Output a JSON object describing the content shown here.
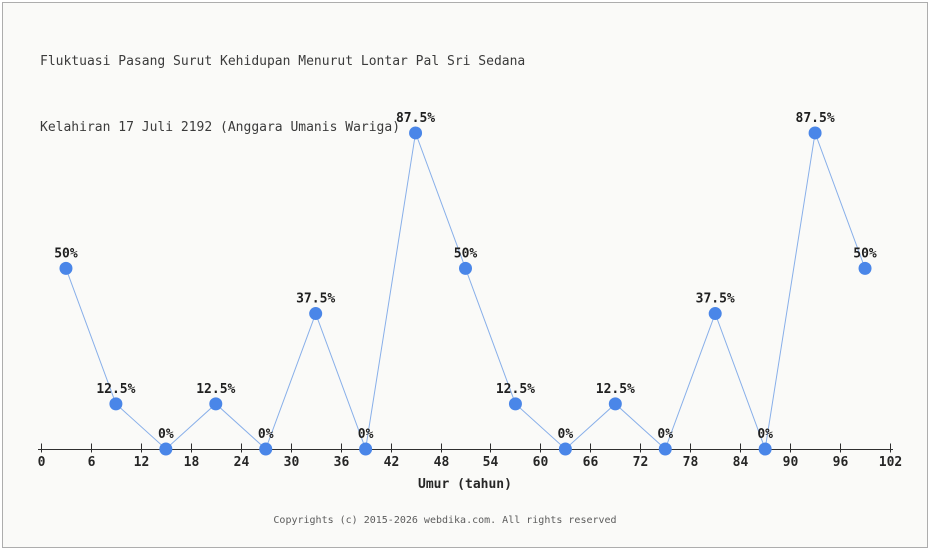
{
  "title": {
    "line1": "Fluktuasi Pasang Surut Kehidupan Menurut Lontar Pal Sri Sedana",
    "line2": "Kelahiran 17 Juli 2192 (Anggara Umanis Wariga)"
  },
  "footer": {
    "copyright": "Copyrights (c) 2015-2026 webdika.com. All rights reserved"
  },
  "chart_data": {
    "type": "line",
    "title": "Fluktuasi Pasang Surut Kehidupan Menurut Lontar Pal Sri Sedana Kelahiran 17 Juli 2192 (Anggara Umanis Wariga)",
    "x": [
      3,
      9,
      15,
      21,
      27,
      33,
      39,
      45,
      51,
      57,
      63,
      69,
      75,
      81,
      87,
      93,
      99
    ],
    "values": [
      50,
      12.5,
      0,
      12.5,
      0,
      37.5,
      0,
      87.5,
      50,
      12.5,
      0,
      12.5,
      0,
      37.5,
      0,
      87.5,
      50
    ],
    "point_labels": [
      "50%",
      "12.5%",
      "0%",
      "12.5%",
      "0%",
      "37.5%",
      "0%",
      "87.5%",
      "50%",
      "12.5%",
      "0%",
      "12.5%",
      "0%",
      "37.5%",
      "0%",
      "87.5%",
      "50%"
    ],
    "xlabel": "Umur (tahun)",
    "ylabel": "",
    "x_ticks": [
      0,
      6,
      12,
      18,
      24,
      30,
      36,
      42,
      48,
      54,
      60,
      66,
      72,
      78,
      84,
      90,
      96,
      102
    ],
    "xlim": [
      0,
      102
    ],
    "ylim": [
      0,
      100
    ],
    "grid": false,
    "legend": false,
    "colors": {
      "marker": "#4a86e8",
      "line": "#88afe9",
      "axis": "#2f2f2f",
      "point_label_text": "#1f1f1f",
      "tick_label_text": "#262626",
      "title_text": "#3b3b3b",
      "footer_text": "#5c5c5c",
      "background": "#fafaf8",
      "border": "#adadad"
    }
  }
}
